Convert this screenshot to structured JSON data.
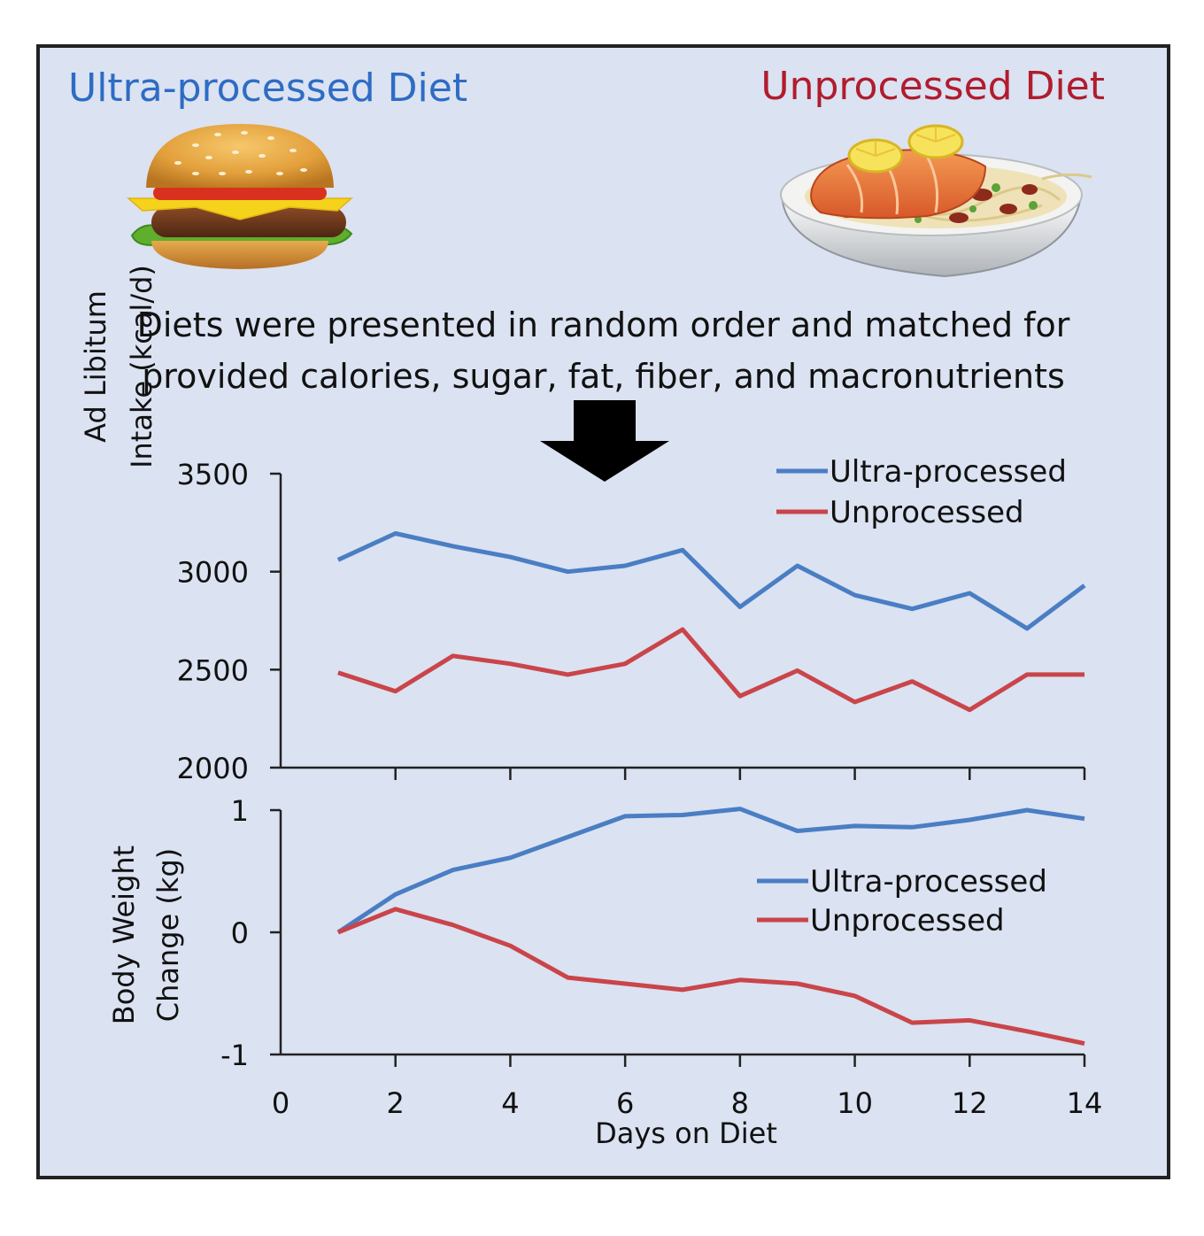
{
  "colors": {
    "ultra": "#4a7ec4",
    "unprocessed": "#c9454a",
    "ultra_heading": "#2e6cc4",
    "unprocessed_heading": "#b01c2e",
    "panel_bg": "#dbe2f1"
  },
  "header": {
    "left_title": "Ultra-processed Diet",
    "right_title": "Unprocessed Diet"
  },
  "illustrations": {
    "left": "hamburger-illustration",
    "right": "salmon-pasta-bowl-illustration",
    "arrow": "down-arrow-icon"
  },
  "caption": {
    "line1": "Diets were presented in random order and matched for",
    "line2": "provided calories, sugar, fat, fiber, and macronutrients"
  },
  "chart_data": [
    {
      "type": "line",
      "ylabel_line1": "Ad Libitum",
      "ylabel_line2": "Intake (kcal/d)",
      "ylim": [
        2000,
        3500
      ],
      "yticks": [
        2000,
        2500,
        3000,
        3500
      ],
      "xlim": [
        0,
        14
      ],
      "legend": "top-right",
      "x": [
        1,
        2,
        3,
        4,
        5,
        6,
        7,
        8,
        9,
        10,
        11,
        12,
        13,
        14
      ],
      "series": [
        {
          "name": "Ultra-processed",
          "values": [
            3060,
            3195,
            3130,
            3075,
            3000,
            3030,
            3110,
            2820,
            3030,
            2880,
            2810,
            2890,
            2710,
            2930
          ]
        },
        {
          "name": "Unprocessed",
          "values": [
            2485,
            2390,
            2570,
            2530,
            2475,
            2530,
            2705,
            2365,
            2495,
            2335,
            2440,
            2295,
            2475,
            2475
          ]
        }
      ]
    },
    {
      "type": "line",
      "ylabel_line1": "Body Weight",
      "ylabel_line2": "Change (kg)",
      "xlabel": "Days on Diet",
      "ylim": [
        -1,
        1
      ],
      "yticks": [
        -1,
        0,
        1
      ],
      "xlim": [
        0,
        14
      ],
      "xticks": [
        0,
        2,
        4,
        6,
        8,
        10,
        12,
        14
      ],
      "legend": "center-right",
      "x": [
        1,
        2,
        3,
        4,
        5,
        6,
        7,
        8,
        9,
        10,
        11,
        12,
        13,
        14
      ],
      "series": [
        {
          "name": "Ultra-processed",
          "values": [
            0.0,
            0.31,
            0.51,
            0.61,
            0.78,
            0.95,
            0.96,
            1.01,
            0.83,
            0.87,
            0.86,
            0.92,
            1.0,
            0.93
          ]
        },
        {
          "name": "Unprocessed",
          "values": [
            0.0,
            0.19,
            0.06,
            -0.11,
            -0.37,
            -0.42,
            -0.47,
            -0.39,
            -0.42,
            -0.52,
            -0.74,
            -0.72,
            -0.81,
            -0.91
          ]
        }
      ]
    }
  ]
}
